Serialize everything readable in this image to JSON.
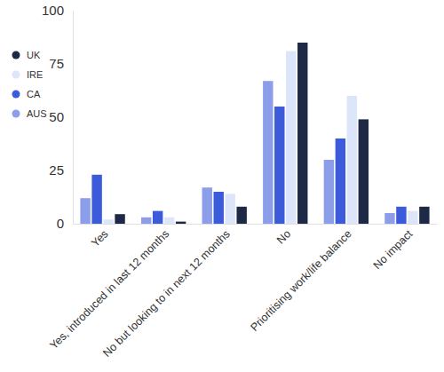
{
  "chart_data": {
    "type": "bar",
    "categories": [
      "Yes",
      "Yes, introduced in last 12 months",
      "No but looking to in next 12 months",
      "No",
      "Prioritising work/life balance",
      "No impact"
    ],
    "series": [
      {
        "name": "AUS",
        "color": "#8c9eea",
        "values": [
          12,
          3,
          17,
          67,
          30,
          5
        ]
      },
      {
        "name": "CA",
        "color": "#3b5bdb",
        "values": [
          23,
          6,
          15,
          55,
          40,
          8
        ]
      },
      {
        "name": "IRE",
        "color": "#dde5fb",
        "values": [
          2,
          3,
          14,
          81,
          60,
          6
        ]
      },
      {
        "name": "UK",
        "color": "#1e2a45",
        "values": [
          4.5,
          1,
          8,
          85,
          49,
          8
        ]
      }
    ],
    "ylim": [
      0,
      100
    ],
    "yticks": [
      0,
      25,
      50,
      75,
      100
    ],
    "grid": false,
    "legend": "left"
  }
}
